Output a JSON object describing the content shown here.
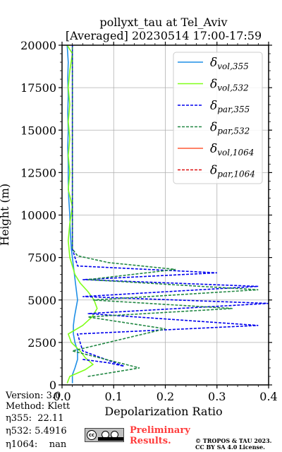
{
  "chart_data": {
    "type": "line",
    "title": "pollyxt_tau at Tel_Aviv",
    "subtitle": "[Averaged] 20230514 17:00-17:59",
    "xlabel": "Depolarization Ratio",
    "ylabel": "Height (m)",
    "xlim": [
      0,
      0.4
    ],
    "ylim": [
      0,
      20000
    ],
    "xticks": [
      "0.0",
      "0.1",
      "0.2",
      "0.3",
      "0.4"
    ],
    "yticks": [
      "0",
      "2500",
      "5000",
      "7500",
      "10000",
      "12500",
      "15000",
      "17500",
      "20000"
    ],
    "grid": true,
    "legend_position": "top-right",
    "series": [
      {
        "name": "δvol,355",
        "legend_label": "$\\delta_{vol,355}$",
        "color": "#1f8fe6",
        "dash": "solid",
        "points": [
          [
            0.02,
            100
          ],
          [
            0.02,
            600
          ],
          [
            0.025,
            1000
          ],
          [
            0.03,
            1500
          ],
          [
            0.03,
            2000
          ],
          [
            0.025,
            2500
          ],
          [
            0.022,
            3000
          ],
          [
            0.022,
            3500
          ],
          [
            0.024,
            4000
          ],
          [
            0.027,
            4500
          ],
          [
            0.03,
            5000
          ],
          [
            0.028,
            5500
          ],
          [
            0.026,
            6000
          ],
          [
            0.024,
            6500
          ],
          [
            0.022,
            7000
          ],
          [
            0.02,
            7500
          ],
          [
            0.018,
            8000
          ],
          [
            0.016,
            9000
          ],
          [
            0.015,
            10000
          ],
          [
            0.013,
            11000
          ],
          [
            0.012,
            12000
          ],
          [
            0.012,
            13000
          ],
          [
            0.011,
            14000
          ],
          [
            0.012,
            15000
          ],
          [
            0.011,
            16000
          ],
          [
            0.012,
            17000
          ],
          [
            0.011,
            18000
          ],
          [
            0.012,
            19000
          ],
          [
            0.01,
            20000
          ]
        ]
      },
      {
        "name": "δvol,532",
        "legend_label": "$\\delta_{vol,532}$",
        "color": "#80ff1a",
        "dash": "solid",
        "points": [
          [
            0.01,
            100
          ],
          [
            0.015,
            500
          ],
          [
            0.045,
            900
          ],
          [
            0.06,
            1200
          ],
          [
            0.045,
            1600
          ],
          [
            0.035,
            2000
          ],
          [
            0.018,
            2500
          ],
          [
            0.012,
            3000
          ],
          [
            0.04,
            3500
          ],
          [
            0.058,
            4000
          ],
          [
            0.068,
            4500
          ],
          [
            0.062,
            5000
          ],
          [
            0.05,
            5500
          ],
          [
            0.035,
            6000
          ],
          [
            0.025,
            6500
          ],
          [
            0.02,
            7000
          ],
          [
            0.015,
            7500
          ],
          [
            0.012,
            8500
          ],
          [
            0.015,
            9500
          ],
          [
            0.02,
            10500
          ],
          [
            0.012,
            11500
          ],
          [
            0.015,
            12500
          ],
          [
            0.012,
            13500
          ],
          [
            0.015,
            14500
          ],
          [
            0.012,
            15500
          ],
          [
            0.015,
            16500
          ],
          [
            0.012,
            17500
          ],
          [
            0.015,
            18500
          ],
          [
            0.02,
            19500
          ],
          [
            0.01,
            20000
          ]
        ]
      },
      {
        "name": "δpar,355",
        "legend_label": "$\\delta_{par,355}$",
        "color": "#0000ee",
        "dash": "dashed",
        "points": [
          [
            0.04,
            1500
          ],
          [
            0.09,
            1300
          ],
          [
            0.12,
            1100
          ],
          [
            0.04,
            2000
          ],
          [
            0.03,
            3000
          ],
          [
            0.38,
            3500
          ],
          [
            0.05,
            4200
          ],
          [
            0.4,
            4800
          ],
          [
            0.04,
            5200
          ],
          [
            0.38,
            5800
          ],
          [
            0.04,
            6200
          ],
          [
            0.3,
            6600
          ],
          [
            0.03,
            7000
          ],
          [
            0.02,
            8000
          ],
          [
            0.02,
            10000
          ],
          [
            0.02,
            12500
          ],
          [
            0.02,
            15000
          ],
          [
            0.02,
            17500
          ],
          [
            0.02,
            20000
          ]
        ]
      },
      {
        "name": "δpar,532",
        "legend_label": "$\\delta_{par,532}$",
        "color": "#228844",
        "dash": "dashed",
        "points": [
          [
            0.05,
            500
          ],
          [
            0.15,
            1000
          ],
          [
            0.02,
            2000
          ],
          [
            0.2,
            3300
          ],
          [
            0.05,
            4000
          ],
          [
            0.33,
            4500
          ],
          [
            0.06,
            5000
          ],
          [
            0.38,
            5600
          ],
          [
            0.05,
            6200
          ],
          [
            0.22,
            6800
          ],
          [
            0.09,
            7200
          ],
          [
            0.03,
            7600
          ],
          [
            0.02,
            8000
          ],
          [
            0.02,
            10000
          ],
          [
            0.02,
            12500
          ],
          [
            0.02,
            15000
          ],
          [
            0.02,
            17500
          ],
          [
            0.02,
            20000
          ]
        ]
      },
      {
        "name": "δvol,1064",
        "legend_label": "$\\delta_{vol,1064}$",
        "color": "#ff5a36",
        "dash": "solid",
        "points": []
      },
      {
        "name": "δpar,1064",
        "legend_label": "$\\delta_{par,1064}$",
        "color": "#dd1111",
        "dash": "dashed",
        "points": []
      }
    ]
  },
  "info": {
    "version": "Version: 3.0",
    "method": "Method: Klett",
    "eta355": "η355:  22.11",
    "eta532": "η532: 5.4916",
    "eta1064": "η1064:    nan"
  },
  "footer": {
    "preliminary_line1": "Preliminary",
    "preliminary_line2": "Results.",
    "copyright_line1": "© TROPOS & TAU 2023.",
    "copyright_line2": "CC BY SA 4.0 License.",
    "cc_logo_text": "cc"
  },
  "colors": {
    "axis": "#000000",
    "grid": "#b0b0b0",
    "background": "#ffffff"
  }
}
